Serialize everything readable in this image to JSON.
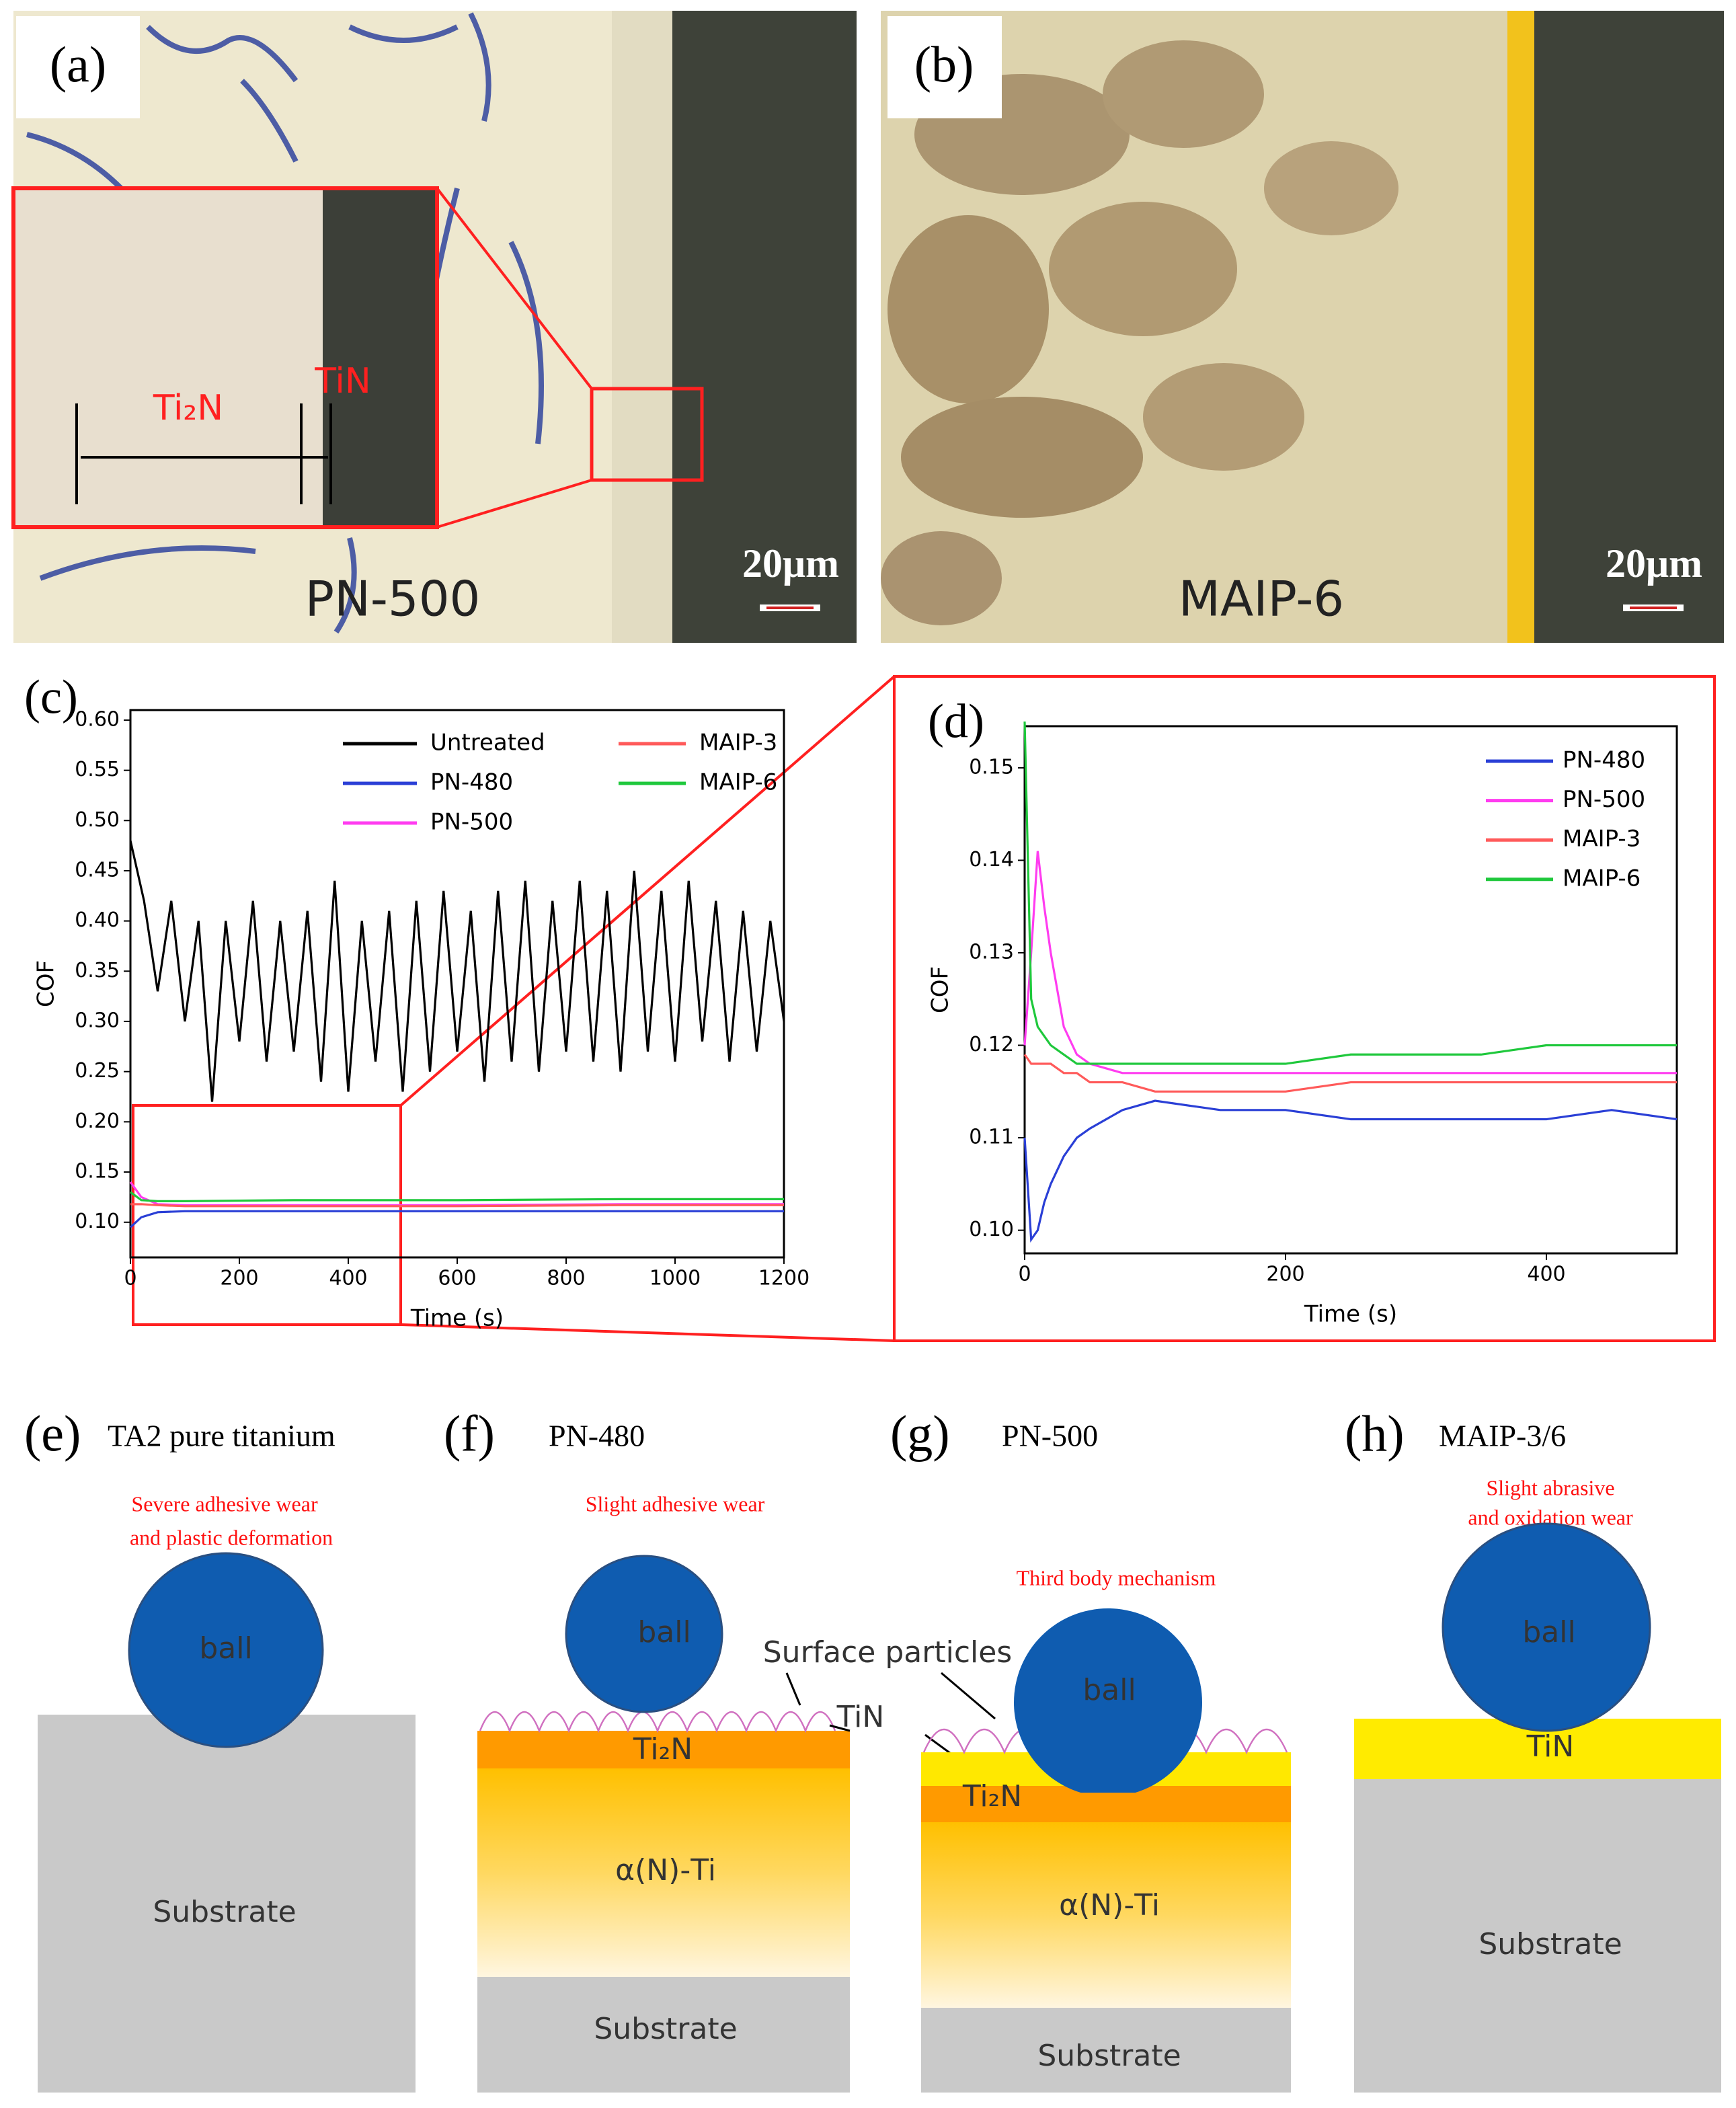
{
  "panels": {
    "a": {
      "label": "(a)",
      "sample": "PN-500",
      "scale_bar": "20μm",
      "inset_labels": [
        "Ti₂N",
        "TiN"
      ]
    },
    "b": {
      "label": "(b)",
      "sample": "MAIP-6",
      "scale_bar": "20μm"
    },
    "e": {
      "label": "(e)",
      "title": "TA2 pure titanium",
      "mechanism": [
        "Severe adhesive wear",
        "and plastic deformation"
      ],
      "ball": "ball",
      "layers": [
        "Substrate"
      ]
    },
    "f": {
      "label": "(f)",
      "title": "PN-480",
      "mechanism": [
        "Slight adhesive wear"
      ],
      "ball": "ball",
      "callouts": [
        "Surface particles",
        "TiN"
      ],
      "layers": [
        "Ti₂N",
        "α(N)-Ti",
        "Substrate"
      ]
    },
    "g": {
      "label": "(g)",
      "title": "PN-500",
      "mechanism": [
        "Third body mechanism"
      ],
      "ball": "ball",
      "layers": [
        "Ti₂N",
        "α(N)-Ti",
        "Substrate"
      ]
    },
    "h": {
      "label": "(h)",
      "title": "MAIP-3/6",
      "mechanism": [
        "Slight abrasive",
        "and oxidation wear"
      ],
      "ball": "ball",
      "layers": [
        "TiN",
        "Substrate"
      ]
    }
  },
  "chart_data": [
    {
      "type": "line",
      "label": "(c)",
      "xlabel": "Time (s)",
      "ylabel": "COF",
      "xlim": [
        0,
        1200
      ],
      "ylim": [
        0.065,
        0.61
      ],
      "xticks": [
        0,
        200,
        400,
        600,
        800,
        1000,
        1200
      ],
      "yticks": [
        {
          "value": 0.1,
          "label": "0.10"
        },
        0.15,
        {
          "value": 0.2,
          "label": "0.20"
        },
        0.25,
        {
          "value": 0.3,
          "label": "0.30"
        },
        0.35,
        {
          "value": 0.4,
          "label": "0.40"
        },
        0.45,
        {
          "value": 0.5,
          "label": "0.50"
        },
        0.55,
        {
          "value": 0.6,
          "label": "0.60"
        }
      ],
      "series": [
        {
          "name": "Untreated",
          "color": "#000000",
          "x": [
            0,
            25,
            50,
            75,
            100,
            125,
            150,
            175,
            200,
            225,
            250,
            275,
            300,
            325,
            350,
            375,
            400,
            425,
            450,
            475,
            500,
            525,
            550,
            575,
            600,
            625,
            650,
            675,
            700,
            725,
            750,
            775,
            800,
            825,
            850,
            875,
            900,
            925,
            950,
            975,
            1000,
            1025,
            1050,
            1075,
            1100,
            1125,
            1150,
            1175,
            1200
          ],
          "values": [
            0.48,
            0.42,
            0.33,
            0.42,
            0.3,
            0.4,
            0.22,
            0.4,
            0.28,
            0.42,
            0.26,
            0.4,
            0.27,
            0.41,
            0.24,
            0.44,
            0.23,
            0.4,
            0.26,
            0.41,
            0.23,
            0.42,
            0.25,
            0.43,
            0.27,
            0.41,
            0.24,
            0.43,
            0.26,
            0.44,
            0.25,
            0.42,
            0.27,
            0.44,
            0.26,
            0.43,
            0.25,
            0.45,
            0.27,
            0.43,
            0.26,
            0.44,
            0.28,
            0.42,
            0.26,
            0.41,
            0.27,
            0.4,
            0.3
          ]
        },
        {
          "name": "PN-480",
          "color": "#2a3fd6",
          "x": [
            0,
            20,
            50,
            100,
            300,
            600,
            900,
            1200
          ],
          "values": [
            0.095,
            0.105,
            0.11,
            0.111,
            0.111,
            0.111,
            0.111,
            0.111
          ]
        },
        {
          "name": "PN-500",
          "color": "#ff3cf0",
          "x": [
            0,
            20,
            50,
            100,
            300,
            600,
            900,
            1200
          ],
          "values": [
            0.14,
            0.125,
            0.118,
            0.117,
            0.117,
            0.117,
            0.118,
            0.118
          ]
        },
        {
          "name": "MAIP-3",
          "color": "#ff5a5a",
          "x": [
            0,
            20,
            50,
            100,
            300,
            600,
            900,
            1200
          ],
          "values": [
            0.118,
            0.118,
            0.117,
            0.116,
            0.116,
            0.116,
            0.117,
            0.117
          ]
        },
        {
          "name": "MAIP-6",
          "color": "#1fc83c",
          "x": [
            0,
            20,
            50,
            100,
            300,
            600,
            900,
            1200
          ],
          "values": [
            0.13,
            0.122,
            0.121,
            0.121,
            0.122,
            0.122,
            0.123,
            0.123
          ]
        }
      ]
    },
    {
      "type": "line",
      "label": "(d)",
      "xlabel": "Time (s)",
      "ylabel": "COF",
      "xlim": [
        0,
        500
      ],
      "ylim": [
        0.0975,
        0.1545
      ],
      "xticks": [
        0,
        200,
        400
      ],
      "yticks": [
        {
          "value": 0.1,
          "label": "0.10"
        },
        0.11,
        0.12,
        0.13,
        0.14,
        0.15
      ],
      "series": [
        {
          "name": "PN-480",
          "color": "#2a3fd6",
          "x": [
            0,
            5,
            10,
            15,
            20,
            30,
            40,
            50,
            75,
            100,
            150,
            200,
            250,
            300,
            350,
            400,
            450,
            500
          ],
          "values": [
            0.11,
            0.099,
            0.1,
            0.103,
            0.105,
            0.108,
            0.11,
            0.111,
            0.113,
            0.114,
            0.113,
            0.113,
            0.112,
            0.112,
            0.112,
            0.112,
            0.113,
            0.112
          ]
        },
        {
          "name": "PN-500",
          "color": "#ff3cf0",
          "x": [
            0,
            5,
            10,
            15,
            20,
            30,
            40,
            50,
            75,
            100,
            150,
            200,
            250,
            300,
            350,
            400,
            450,
            500
          ],
          "values": [
            0.12,
            0.13,
            0.141,
            0.135,
            0.13,
            0.122,
            0.119,
            0.118,
            0.117,
            0.117,
            0.117,
            0.117,
            0.117,
            0.117,
            0.117,
            0.117,
            0.117,
            0.117
          ]
        },
        {
          "name": "MAIP-3",
          "color": "#ff5a5a",
          "x": [
            0,
            5,
            10,
            15,
            20,
            30,
            40,
            50,
            75,
            100,
            150,
            200,
            250,
            300,
            350,
            400,
            450,
            500
          ],
          "values": [
            0.119,
            0.118,
            0.118,
            0.118,
            0.118,
            0.117,
            0.117,
            0.116,
            0.116,
            0.115,
            0.115,
            0.115,
            0.116,
            0.116,
            0.116,
            0.116,
            0.116,
            0.116
          ]
        },
        {
          "name": "MAIP-6",
          "color": "#1fc83c",
          "x": [
            0,
            5,
            10,
            15,
            20,
            30,
            40,
            50,
            75,
            100,
            150,
            200,
            250,
            300,
            350,
            400,
            450,
            500
          ],
          "values": [
            0.155,
            0.125,
            0.122,
            0.121,
            0.12,
            0.119,
            0.118,
            0.118,
            0.118,
            0.118,
            0.118,
            0.118,
            0.119,
            0.119,
            0.119,
            0.12,
            0.12,
            0.12
          ]
        }
      ]
    }
  ]
}
